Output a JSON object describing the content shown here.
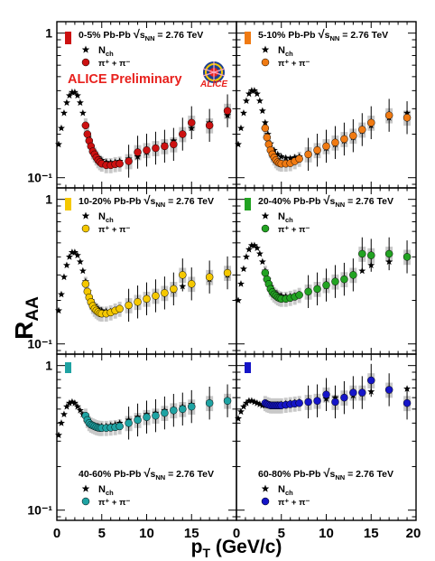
{
  "figure": {
    "ylabel_main": "R",
    "ylabel_sub": "AA",
    "xlabel_main": "p",
    "xlabel_sub": "T",
    "xlabel_rest": " (GeV/c)",
    "preliminary": "ALICE Preliminary",
    "logo_text": "ALICE",
    "colors": {
      "preliminary": "#e8201c",
      "nch": "#000000",
      "band": "#c8c8c8"
    }
  },
  "chart_data": [
    {
      "type": "scatter",
      "panel": "top-left",
      "centrality": "0-5% Pb-Pb",
      "energy": "= 2.76 TeV",
      "legend_nch": "N",
      "legend_nch_sub": "ch",
      "legend_pi": "π⁺ + π⁻",
      "color": "#cc1111",
      "legend_position": "top",
      "xlim": [
        0,
        20
      ],
      "ylim": [
        0.085,
        1.2
      ],
      "yscale": "log",
      "x_ticks": [
        "0",
        "5",
        "10",
        "15"
      ],
      "y_ticks": [
        "1",
        "10⁻¹"
      ],
      "series": [
        {
          "name": "Nch",
          "marker": "star",
          "x": [
            0.2,
            0.5,
            0.8,
            1.1,
            1.4,
            1.7,
            2.0,
            2.3,
            2.6,
            2.9,
            3.2,
            3.5,
            3.8,
            4.2,
            4.6,
            5.0,
            5.5,
            6.0,
            6.5,
            7.0,
            8.0,
            9.0,
            10.0,
            11.0,
            12.0,
            13.0,
            14.0,
            15.0,
            17.0,
            19.0
          ],
          "y": [
            0.17,
            0.22,
            0.28,
            0.33,
            0.37,
            0.39,
            0.39,
            0.37,
            0.33,
            0.28,
            0.23,
            0.19,
            0.165,
            0.148,
            0.138,
            0.132,
            0.128,
            0.127,
            0.128,
            0.13,
            0.135,
            0.14,
            0.15,
            0.16,
            0.17,
            0.18,
            0.2,
            0.22,
            0.24,
            0.27
          ]
        },
        {
          "name": "π⁺ + π⁻",
          "marker": "circle",
          "x": [
            3.2,
            3.4,
            3.6,
            3.8,
            4.0,
            4.2,
            4.4,
            4.6,
            4.8,
            5.0,
            5.5,
            6.0,
            6.5,
            7.0,
            8.0,
            9.0,
            10.0,
            11.0,
            12.0,
            13.0,
            14.0,
            15.0,
            17.0,
            19.0
          ],
          "y": [
            0.23,
            0.2,
            0.18,
            0.165,
            0.152,
            0.145,
            0.138,
            0.132,
            0.128,
            0.125,
            0.122,
            0.122,
            0.124,
            0.125,
            0.13,
            0.15,
            0.155,
            0.16,
            0.165,
            0.17,
            0.2,
            0.24,
            0.23,
            0.29
          ]
        }
      ]
    },
    {
      "type": "scatter",
      "panel": "top-right",
      "centrality": "5-10% Pb-Pb",
      "energy": "= 2.76 TeV",
      "legend_nch": "N",
      "legend_nch_sub": "ch",
      "legend_pi": "π⁺ + π⁻",
      "color": "#f07a12",
      "legend_position": "top",
      "xlim": [
        0,
        20
      ],
      "ylim": [
        0.085,
        1.2
      ],
      "yscale": "log",
      "x_ticks": [
        "0",
        "5",
        "10",
        "15",
        "20"
      ],
      "y_ticks": [],
      "series": [
        {
          "name": "Nch",
          "marker": "star",
          "x": [
            0.2,
            0.5,
            0.8,
            1.1,
            1.4,
            1.7,
            2.0,
            2.3,
            2.6,
            2.9,
            3.2,
            3.5,
            3.8,
            4.2,
            4.6,
            5.0,
            5.5,
            6.0,
            6.5,
            7.0,
            8.0,
            9.0,
            10.0,
            11.0,
            12.0,
            13.0,
            14.0,
            15.0,
            17.0,
            19.0
          ],
          "y": [
            0.17,
            0.22,
            0.28,
            0.34,
            0.38,
            0.4,
            0.4,
            0.38,
            0.34,
            0.29,
            0.24,
            0.2,
            0.172,
            0.155,
            0.145,
            0.14,
            0.137,
            0.136,
            0.138,
            0.14,
            0.145,
            0.15,
            0.16,
            0.17,
            0.18,
            0.19,
            0.21,
            0.23,
            0.26,
            0.28
          ]
        },
        {
          "name": "π⁺ + π⁻",
          "marker": "circle",
          "x": [
            3.2,
            3.4,
            3.6,
            3.8,
            4.0,
            4.2,
            4.4,
            4.6,
            4.8,
            5.0,
            5.5,
            6.0,
            6.5,
            7.0,
            8.0,
            9.0,
            10.0,
            11.0,
            12.0,
            13.0,
            14.0,
            15.0,
            17.0,
            19.0
          ],
          "y": [
            0.22,
            0.19,
            0.17,
            0.155,
            0.145,
            0.138,
            0.132,
            0.128,
            0.126,
            0.125,
            0.125,
            0.126,
            0.13,
            0.135,
            0.145,
            0.155,
            0.165,
            0.175,
            0.185,
            0.195,
            0.215,
            0.24,
            0.27,
            0.26
          ]
        }
      ]
    },
    {
      "type": "scatter",
      "panel": "mid-left",
      "centrality": "10-20% Pb-Pb",
      "energy": "= 2.76 TeV",
      "legend_nch": "N",
      "legend_nch_sub": "ch",
      "legend_pi": "π⁺ + π⁻",
      "color": "#f5c800",
      "legend_position": "top",
      "xlim": [
        0,
        20
      ],
      "ylim": [
        0.085,
        1.2
      ],
      "yscale": "log",
      "x_ticks": [
        "0",
        "5",
        "10",
        "15"
      ],
      "y_ticks": [
        "1",
        "10⁻¹"
      ],
      "series": [
        {
          "name": "Nch",
          "marker": "star",
          "x": [
            0.2,
            0.5,
            0.8,
            1.1,
            1.4,
            1.7,
            2.0,
            2.3,
            2.6,
            2.9,
            3.2,
            3.5,
            3.8,
            4.2,
            4.6,
            5.0,
            5.5,
            6.0,
            6.5,
            7.0,
            8.0,
            9.0,
            10.0,
            11.0,
            12.0,
            13.0,
            14.0,
            15.0,
            17.0,
            19.0
          ],
          "y": [
            0.17,
            0.22,
            0.29,
            0.35,
            0.4,
            0.43,
            0.43,
            0.41,
            0.37,
            0.32,
            0.27,
            0.23,
            0.2,
            0.185,
            0.175,
            0.17,
            0.168,
            0.168,
            0.17,
            0.175,
            0.185,
            0.195,
            0.205,
            0.215,
            0.225,
            0.235,
            0.25,
            0.26,
            0.28,
            0.3
          ]
        },
        {
          "name": "π⁺ + π⁻",
          "marker": "circle",
          "x": [
            3.2,
            3.4,
            3.6,
            3.8,
            4.0,
            4.2,
            4.4,
            4.6,
            4.8,
            5.0,
            5.5,
            6.0,
            6.5,
            7.0,
            8.0,
            9.0,
            10.0,
            11.0,
            12.0,
            13.0,
            14.0,
            15.0,
            17.0,
            19.0
          ],
          "y": [
            0.26,
            0.23,
            0.21,
            0.195,
            0.183,
            0.175,
            0.17,
            0.166,
            0.163,
            0.162,
            0.162,
            0.165,
            0.17,
            0.175,
            0.185,
            0.195,
            0.205,
            0.215,
            0.225,
            0.24,
            0.3,
            0.26,
            0.29,
            0.31
          ]
        }
      ]
    },
    {
      "type": "scatter",
      "panel": "mid-right",
      "centrality": "20-40% Pb-Pb",
      "energy": "= 2.76 TeV",
      "legend_nch": "N",
      "legend_nch_sub": "ch",
      "legend_pi": "π⁺ + π⁻",
      "color": "#22a322",
      "legend_position": "top",
      "xlim": [
        0,
        20
      ],
      "ylim": [
        0.085,
        1.2
      ],
      "yscale": "log",
      "x_ticks": [
        "0",
        "5",
        "10",
        "15",
        "20"
      ],
      "y_ticks": [],
      "series": [
        {
          "name": "Nch",
          "marker": "star",
          "x": [
            0.2,
            0.5,
            0.8,
            1.1,
            1.4,
            1.7,
            2.0,
            2.3,
            2.6,
            2.9,
            3.2,
            3.5,
            3.8,
            4.2,
            4.6,
            5.0,
            5.5,
            6.0,
            6.5,
            7.0,
            8.0,
            9.0,
            10.0,
            11.0,
            12.0,
            13.0,
            14.0,
            15.0,
            17.0,
            19.0
          ],
          "y": [
            0.2,
            0.26,
            0.33,
            0.4,
            0.45,
            0.48,
            0.48,
            0.46,
            0.42,
            0.37,
            0.32,
            0.28,
            0.25,
            0.23,
            0.22,
            0.215,
            0.213,
            0.213,
            0.215,
            0.22,
            0.23,
            0.24,
            0.25,
            0.27,
            0.28,
            0.3,
            0.32,
            0.35,
            0.37,
            0.4
          ]
        },
        {
          "name": "π⁺ + π⁻",
          "marker": "circle",
          "x": [
            3.2,
            3.4,
            3.6,
            3.8,
            4.0,
            4.2,
            4.4,
            4.6,
            4.8,
            5.0,
            5.5,
            6.0,
            6.5,
            7.0,
            8.0,
            9.0,
            10.0,
            11.0,
            12.0,
            13.0,
            14.0,
            15.0,
            17.0,
            19.0
          ],
          "y": [
            0.31,
            0.28,
            0.26,
            0.24,
            0.228,
            0.22,
            0.215,
            0.21,
            0.207,
            0.205,
            0.205,
            0.208,
            0.212,
            0.218,
            0.23,
            0.24,
            0.255,
            0.27,
            0.28,
            0.3,
            0.42,
            0.41,
            0.42,
            0.4
          ]
        }
      ]
    },
    {
      "type": "scatter",
      "panel": "bottom-left",
      "centrality": "40-60% Pb-Pb",
      "energy": "= 2.76 TeV",
      "legend_nch": "N",
      "legend_nch_sub": "ch",
      "legend_pi": "π⁺ + π⁻",
      "color": "#1fa3a3",
      "legend_position": "bottom",
      "xlim": [
        0,
        20
      ],
      "ylim": [
        0.085,
        1.2
      ],
      "yscale": "log",
      "x_ticks": [
        "0",
        "5",
        "10",
        "15"
      ],
      "y_ticks": [
        "1",
        "10⁻¹"
      ],
      "series": [
        {
          "name": "Nch",
          "marker": "star",
          "x": [
            0.2,
            0.5,
            0.8,
            1.1,
            1.4,
            1.7,
            2.0,
            2.3,
            2.6,
            2.9,
            3.2,
            3.5,
            3.8,
            4.2,
            4.6,
            5.0,
            5.5,
            6.0,
            6.5,
            7.0,
            8.0,
            9.0,
            10.0,
            11.0,
            12.0,
            13.0,
            14.0,
            15.0,
            17.0,
            19.0
          ],
          "y": [
            0.33,
            0.4,
            0.46,
            0.52,
            0.55,
            0.56,
            0.55,
            0.52,
            0.49,
            0.46,
            0.43,
            0.41,
            0.39,
            0.38,
            0.38,
            0.38,
            0.38,
            0.385,
            0.39,
            0.4,
            0.42,
            0.44,
            0.46,
            0.47,
            0.49,
            0.5,
            0.52,
            0.54,
            0.56,
            0.58
          ]
        },
        {
          "name": "π⁺ + π⁻",
          "marker": "circle",
          "x": [
            3.2,
            3.4,
            3.6,
            3.8,
            4.0,
            4.2,
            4.4,
            4.6,
            4.8,
            5.0,
            5.5,
            6.0,
            6.5,
            7.0,
            8.0,
            9.0,
            10.0,
            11.0,
            12.0,
            13.0,
            14.0,
            15.0,
            17.0,
            19.0
          ],
          "y": [
            0.45,
            0.42,
            0.4,
            0.39,
            0.385,
            0.38,
            0.375,
            0.372,
            0.37,
            0.37,
            0.37,
            0.372,
            0.375,
            0.38,
            0.4,
            0.42,
            0.44,
            0.45,
            0.47,
            0.49,
            0.5,
            0.52,
            0.55,
            0.57
          ]
        }
      ]
    },
    {
      "type": "scatter",
      "panel": "bottom-right",
      "centrality": "60-80% Pb-Pb",
      "energy": "= 2.76 TeV",
      "legend_nch": "N",
      "legend_nch_sub": "ch",
      "legend_pi": "π⁺ + π⁻",
      "color": "#1515c8",
      "legend_position": "bottom",
      "xlim": [
        0,
        20
      ],
      "ylim": [
        0.085,
        1.2
      ],
      "yscale": "log",
      "x_ticks": [
        "0",
        "5",
        "10",
        "15",
        "20"
      ],
      "y_ticks": [],
      "series": [
        {
          "name": "Nch",
          "marker": "star",
          "x": [
            0.2,
            0.5,
            0.8,
            1.1,
            1.4,
            1.7,
            2.0,
            2.3,
            2.6,
            2.9,
            3.2,
            3.5,
            3.8,
            4.2,
            4.6,
            5.0,
            5.5,
            6.0,
            6.5,
            7.0,
            8.0,
            9.0,
            10.0,
            11.0,
            12.0,
            13.0,
            14.0,
            15.0,
            17.0,
            19.0
          ],
          "y": [
            0.43,
            0.48,
            0.52,
            0.55,
            0.57,
            0.57,
            0.56,
            0.55,
            0.54,
            0.53,
            0.53,
            0.53,
            0.53,
            0.53,
            0.535,
            0.54,
            0.545,
            0.55,
            0.555,
            0.56,
            0.57,
            0.58,
            0.59,
            0.6,
            0.61,
            0.62,
            0.64,
            0.66,
            0.67,
            0.69
          ]
        },
        {
          "name": "π⁺ + π⁻",
          "marker": "circle",
          "x": [
            3.2,
            3.4,
            3.6,
            3.8,
            4.0,
            4.2,
            4.4,
            4.6,
            4.8,
            5.0,
            5.5,
            6.0,
            6.5,
            7.0,
            8.0,
            9.0,
            10.0,
            11.0,
            12.0,
            13.0,
            14.0,
            15.0,
            17.0,
            19.0
          ],
          "y": [
            0.55,
            0.54,
            0.535,
            0.53,
            0.53,
            0.53,
            0.53,
            0.53,
            0.53,
            0.53,
            0.535,
            0.54,
            0.545,
            0.55,
            0.56,
            0.57,
            0.63,
            0.56,
            0.6,
            0.65,
            0.65,
            0.79,
            0.68,
            0.55
          ]
        }
      ]
    }
  ]
}
